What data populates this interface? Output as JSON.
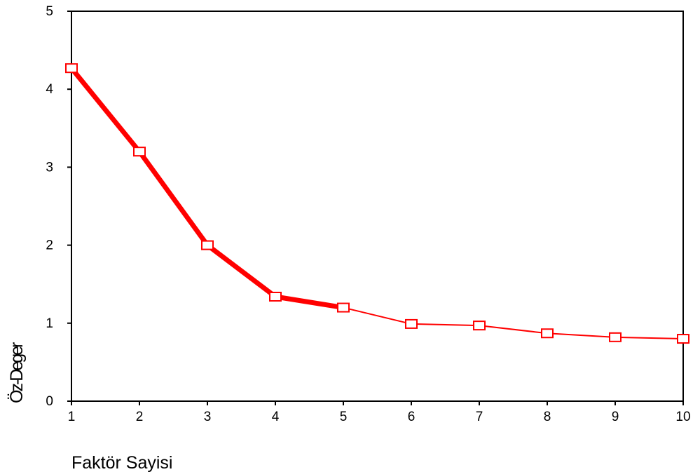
{
  "chart_data": {
    "type": "line",
    "title": "",
    "xlabel": "Faktör Sayisi",
    "ylabel": "Öz-Deger",
    "x": [
      1,
      2,
      3,
      4,
      5,
      6,
      7,
      8,
      9,
      10
    ],
    "xlim": [
      1,
      10
    ],
    "ylim": [
      0,
      5
    ],
    "x_ticks": [
      "1",
      "2",
      "3",
      "4",
      "5",
      "6",
      "7",
      "8",
      "9",
      "10"
    ],
    "y_ticks": [
      "0",
      "1",
      "2",
      "3",
      "4",
      "5"
    ],
    "grid": false,
    "series": [
      {
        "values": [
          4.27,
          3.2,
          2.0,
          1.34,
          1.2,
          0.99,
          0.97,
          0.87,
          0.82,
          0.8
        ],
        "color": "#ff0000",
        "marker": "open-square"
      }
    ]
  }
}
